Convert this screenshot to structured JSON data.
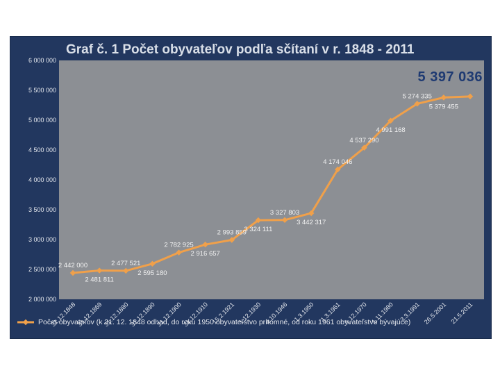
{
  "colors": {
    "series": "#f0a04a",
    "frame": "#22375f",
    "plot": "#8c8f94",
    "axis_text": "#e3e6ec",
    "highlight": "#1e3a72"
  },
  "chart_data": {
    "type": "line",
    "title": "Graf č. 1 Počet obyvateľov podľa sčítaní v r. 1848 - 2011",
    "highlight_value": "5 397 036",
    "ylim": [
      2000000,
      6000000
    ],
    "yticks": [
      "2 000 000",
      "2 500 000",
      "3 000 000",
      "3 500 000",
      "4 000 000",
      "4 500 000",
      "5 000 000",
      "5 500 000",
      "6 000 000"
    ],
    "ytick_values": [
      2000000,
      2500000,
      3000000,
      3500000,
      4000000,
      4500000,
      5000000,
      5500000,
      6000000
    ],
    "grid": false,
    "legend_position": "bottom",
    "categories": [
      "31.12.1848",
      "31.12.1869",
      "31.12.1880",
      "31.12.1890",
      "31.12.1900",
      "31.12.1910",
      "15.2.1921",
      "1.12.1930",
      "4.10.1946",
      "1.3.1950",
      "1.3.1961",
      "1.12.1970",
      "1.11.1980",
      "3.3.1991",
      "26.5.2001",
      "21.5.2011"
    ],
    "series": [
      {
        "name": "Počet obyvateľov (k 31. 12. 1848 odhad, do roku 1950 obyvateľstvo prítomné, od roku 1961 obyvateľstvo bývajúce)",
        "values": [
          2442000,
          2481811,
          2477521,
          2595180,
          2782925,
          2916657,
          2993859,
          3324111,
          3327803,
          3442317,
          4174046,
          4537290,
          4991168,
          5274335,
          5379455,
          5397036
        ],
        "labels": [
          "2 442 000",
          "2 481 811",
          "2 477 521",
          "2 595 180",
          "2 782 925",
          "2 916 657",
          "2 993 859",
          "3 324 111",
          "3 327 803",
          "3 442 317",
          "4 174 046",
          "4 537 290",
          "4 991 168",
          "5 274 335",
          "5 379 455",
          ""
        ],
        "label_side": [
          "above",
          "below",
          "above",
          "below",
          "above",
          "below",
          "above",
          "below",
          "above",
          "below",
          "above",
          "above",
          "below",
          "above",
          "below",
          "none"
        ]
      }
    ]
  }
}
